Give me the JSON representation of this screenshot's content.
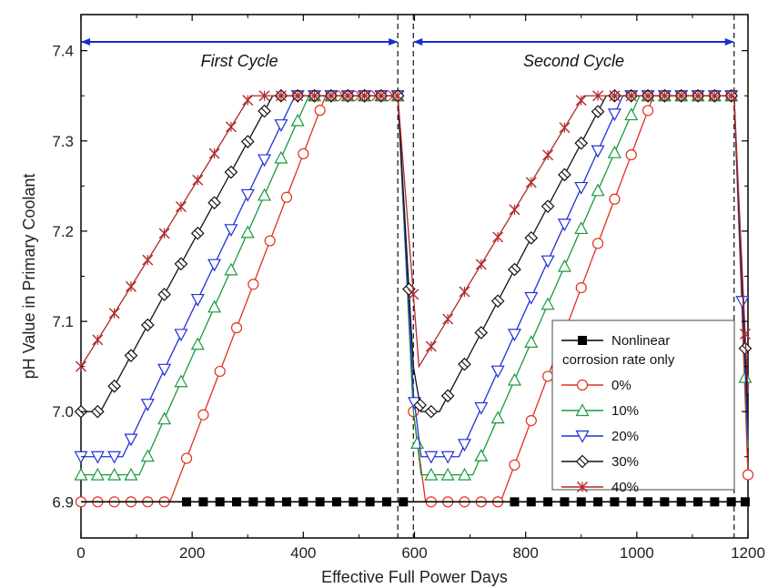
{
  "chart_data": {
    "type": "line",
    "xlabel": "Effective Full Power Days",
    "ylabel": "pH Value in Primary Coolant",
    "xlim": [
      0,
      1200
    ],
    "ylim": [
      6.86,
      7.44
    ],
    "x_ticks": [
      0,
      200,
      400,
      600,
      800,
      1000,
      1200
    ],
    "x_tick_labels": [
      "0",
      "200",
      "400",
      "600",
      "800",
      "1000",
      "1200"
    ],
    "y_ticks": [
      6.9,
      7.0,
      7.1,
      7.2,
      7.3,
      7.4
    ],
    "y_tick_labels": [
      "6.9",
      "7.0",
      "7.1",
      "7.2",
      "7.3",
      "7.4"
    ],
    "grid": false,
    "legend_position": "bottom-right",
    "annotations": [
      {
        "text": "First Cycle",
        "x_start": 0,
        "x_end": 570,
        "color": "#1a2bd0"
      },
      {
        "text": "Second Cycle",
        "x_start": 598,
        "x_end": 1175,
        "color": "#1a2bd0"
      }
    ],
    "vertical_lines": [
      570,
      598,
      1175
    ],
    "series": [
      {
        "name": "Nonlinear corrosion rate only",
        "legend_label_lines": [
          "Nonlinear",
          "corrosion rate only"
        ],
        "color": "#000000",
        "marker": "filled-square",
        "x": [
          0,
          1200
        ],
        "y": [
          6.9,
          6.9
        ],
        "marker_x": [
          190,
          220,
          250,
          280,
          310,
          340,
          370,
          400,
          430,
          460,
          490,
          520,
          550,
          580,
          780,
          810,
          840,
          870,
          900,
          930,
          960,
          990,
          1020,
          1050,
          1080,
          1110,
          1140,
          1170,
          1195
        ]
      },
      {
        "name": "0%",
        "legend_label_lines": [
          "0%"
        ],
        "color": "#e0301e",
        "marker": "circle",
        "x": [
          0,
          160,
          440,
          570,
          598,
          620,
          755,
          1030,
          1175,
          1200
        ],
        "y": [
          6.9,
          6.9,
          7.35,
          7.35,
          7.0,
          6.9,
          6.9,
          7.35,
          7.35,
          6.93
        ],
        "marker_x": [
          0,
          30,
          60,
          90,
          120,
          150,
          190,
          220,
          250,
          280,
          310,
          340,
          370,
          400,
          430,
          460,
          490,
          520,
          550,
          598,
          630,
          660,
          690,
          720,
          750,
          780,
          810,
          840,
          870,
          900,
          930,
          960,
          990,
          1020,
          1050,
          1080,
          1110,
          1140,
          1170,
          1200
        ]
      },
      {
        "name": "10%",
        "legend_label_lines": [
          "10%"
        ],
        "color": "#1a9a3c",
        "marker": "triangle-up",
        "x": [
          0,
          105,
          410,
          570,
          598,
          612,
          705,
          1005,
          1175,
          1200
        ],
        "y": [
          6.93,
          6.93,
          7.35,
          7.35,
          7.0,
          6.93,
          6.93,
          7.35,
          7.35,
          6.96
        ],
        "marker_x": [
          0,
          30,
          60,
          90,
          120,
          150,
          180,
          210,
          240,
          270,
          300,
          330,
          360,
          390,
          420,
          450,
          480,
          510,
          540,
          570,
          605,
          630,
          660,
          690,
          720,
          750,
          780,
          810,
          840,
          870,
          900,
          930,
          960,
          990,
          1020,
          1050,
          1080,
          1110,
          1140,
          1170,
          1195
        ]
      },
      {
        "name": "20%",
        "legend_label_lines": [
          "20%"
        ],
        "color": "#2030d8",
        "marker": "triangle-down",
        "x": [
          0,
          75,
          385,
          570,
          598,
          612,
          680,
          975,
          1175,
          1200
        ],
        "y": [
          6.95,
          6.95,
          7.35,
          7.35,
          7.02,
          6.95,
          6.95,
          7.35,
          7.35,
          6.97
        ],
        "marker_x": [
          0,
          30,
          60,
          90,
          120,
          150,
          180,
          210,
          240,
          270,
          300,
          330,
          360,
          390,
          420,
          450,
          480,
          510,
          540,
          570,
          600,
          630,
          660,
          690,
          720,
          750,
          780,
          810,
          840,
          870,
          900,
          930,
          960,
          990,
          1020,
          1050,
          1080,
          1110,
          1140,
          1170,
          1190
        ]
      },
      {
        "name": "30%",
        "legend_label_lines": [
          "30%"
        ],
        "color": "#111111",
        "marker": "diamond-cross",
        "x": [
          0,
          35,
          345,
          570,
          598,
          612,
          645,
          945,
          1175,
          1200
        ],
        "y": [
          7.0,
          7.0,
          7.35,
          7.35,
          7.05,
          7.0,
          7.0,
          7.35,
          7.35,
          7.0
        ],
        "marker_x": [
          0,
          30,
          60,
          90,
          120,
          150,
          180,
          210,
          240,
          270,
          300,
          330,
          360,
          390,
          420,
          450,
          480,
          510,
          540,
          570,
          590,
          610,
          630,
          660,
          690,
          720,
          750,
          780,
          810,
          840,
          870,
          900,
          930,
          960,
          990,
          1020,
          1050,
          1080,
          1110,
          1140,
          1170,
          1195
        ]
      },
      {
        "name": "40%",
        "legend_label_lines": [
          "40%"
        ],
        "color": "#b02a2a",
        "marker": "star-x",
        "x": [
          0,
          305,
          570,
          598,
          608,
          905,
          1175,
          1200
        ],
        "y": [
          7.05,
          7.35,
          7.35,
          7.13,
          7.05,
          7.35,
          7.35,
          7.02
        ],
        "marker_x": [
          0,
          30,
          60,
          90,
          120,
          150,
          180,
          210,
          240,
          270,
          300,
          330,
          360,
          390,
          420,
          450,
          480,
          510,
          540,
          570,
          598,
          630,
          660,
          690,
          720,
          750,
          780,
          810,
          840,
          870,
          900,
          930,
          960,
          990,
          1020,
          1050,
          1080,
          1110,
          1140,
          1170,
          1195
        ]
      }
    ]
  }
}
